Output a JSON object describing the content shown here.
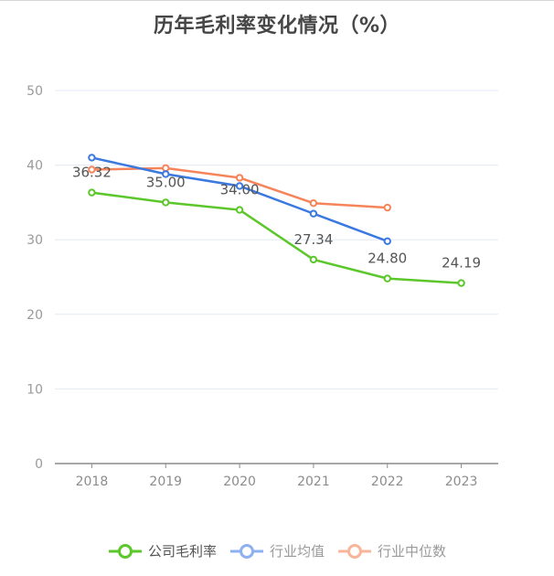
{
  "title": "历年毛利率变化情况（%）",
  "chart_data": {
    "type": "line",
    "title": "历年毛利率变化情况（%）",
    "xlabel": "",
    "ylabel": "",
    "categories": [
      "2018",
      "2019",
      "2020",
      "2021",
      "2022",
      "2023"
    ],
    "ylim": [
      0,
      50
    ],
    "yticks": [
      0,
      10,
      20,
      30,
      40,
      50
    ],
    "grid": true,
    "legend_position": "bottom",
    "series": [
      {
        "name": "公司毛利率",
        "color": "#5cc72b",
        "values": [
          36.32,
          35.0,
          34.0,
          27.34,
          24.8,
          24.19
        ],
        "show_labels": true,
        "labels": [
          "36.32",
          "35.00",
          "34.00",
          "27.34",
          "24.80",
          "24.19"
        ]
      },
      {
        "name": "行业均值",
        "color": "#3b78e0",
        "values": [
          41.0,
          38.8,
          37.2,
          33.5,
          29.8,
          null
        ],
        "show_labels": false
      },
      {
        "name": "行业中位数",
        "color": "#f6845b",
        "values": [
          39.4,
          39.6,
          38.3,
          34.9,
          34.3,
          null
        ],
        "show_labels": false
      }
    ]
  },
  "legend": [
    {
      "label": "公司毛利率",
      "color": "#5cc72b",
      "text_color": "#555555"
    },
    {
      "label": "行业均值",
      "color": "#8fb0f0",
      "text_color": "#9a9a9a"
    },
    {
      "label": "行业中位数",
      "color": "#f7b59c",
      "text_color": "#9a9a9a"
    }
  ]
}
